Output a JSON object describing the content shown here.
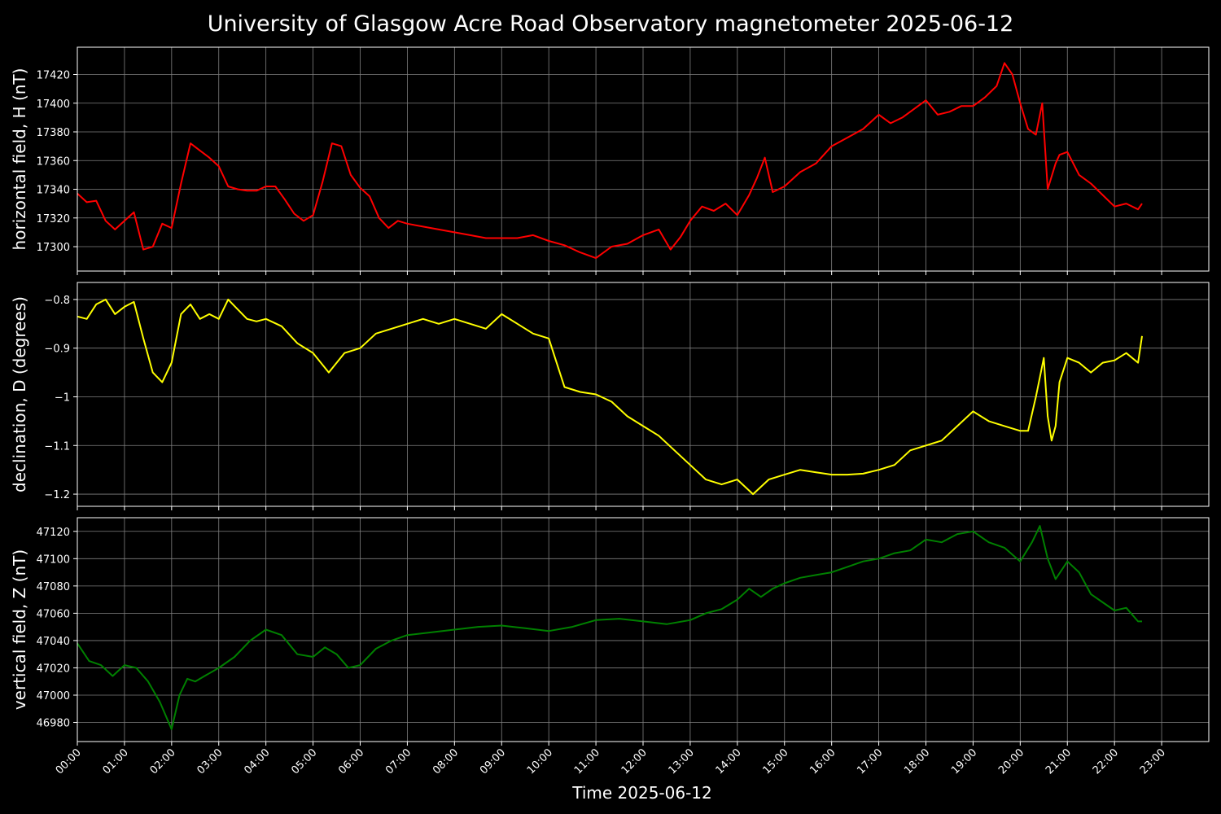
{
  "title": "University of Glasgow Acre Road Observatory magnetometer 2025-06-12",
  "xlabel": "Time 2025-06-12",
  "colors": {
    "background": "#000000",
    "grid": "#808080",
    "axes": "#ffffff",
    "text": "#ffffff"
  },
  "x_ticks": [
    "00:00",
    "01:00",
    "02:00",
    "03:00",
    "04:00",
    "05:00",
    "06:00",
    "07:00",
    "08:00",
    "09:00",
    "10:00",
    "11:00",
    "12:00",
    "13:00",
    "14:00",
    "15:00",
    "16:00",
    "17:00",
    "18:00",
    "19:00",
    "20:00",
    "21:00",
    "22:00",
    "23:00"
  ],
  "chart_data": [
    {
      "type": "line",
      "name": "H",
      "ylabel": "horizontal field, H (nT)",
      "color": "#ff0000",
      "grid": true,
      "xlim": [
        "00:00",
        "24:00"
      ],
      "ylim": [
        17283,
        17439
      ],
      "yticks": [
        17300,
        17320,
        17340,
        17360,
        17380,
        17400,
        17420
      ],
      "x": [
        "00:00",
        "00:12",
        "00:24",
        "00:36",
        "00:48",
        "01:00",
        "01:12",
        "01:24",
        "01:36",
        "01:48",
        "02:00",
        "02:12",
        "02:24",
        "02:36",
        "02:48",
        "03:00",
        "03:12",
        "03:24",
        "03:36",
        "03:48",
        "04:00",
        "04:12",
        "04:24",
        "04:36",
        "04:48",
        "05:00",
        "05:12",
        "05:24",
        "05:36",
        "05:48",
        "06:00",
        "06:12",
        "06:24",
        "06:36",
        "06:48",
        "07:00",
        "07:20",
        "07:40",
        "08:00",
        "08:20",
        "08:40",
        "09:00",
        "09:20",
        "09:40",
        "10:00",
        "10:20",
        "10:40",
        "11:00",
        "11:20",
        "11:40",
        "12:00",
        "12:20",
        "12:35",
        "12:48",
        "13:00",
        "13:15",
        "13:30",
        "13:45",
        "14:00",
        "14:15",
        "14:25",
        "14:35",
        "14:45",
        "15:00",
        "15:20",
        "15:40",
        "16:00",
        "16:20",
        "16:40",
        "17:00",
        "17:15",
        "17:30",
        "17:45",
        "18:00",
        "18:15",
        "18:30",
        "18:45",
        "19:00",
        "19:15",
        "19:30",
        "19:40",
        "19:50",
        "20:00",
        "20:10",
        "20:20",
        "20:28",
        "20:35",
        "20:45",
        "20:50",
        "21:00",
        "21:15",
        "21:30",
        "21:45",
        "22:00",
        "22:15",
        "22:30",
        "22:35"
      ],
      "values": [
        17337,
        17331,
        17332,
        17318,
        17312,
        17318,
        17324,
        17298,
        17300,
        17316,
        17313,
        17344,
        17372,
        17367,
        17362,
        17356,
        17342,
        17340,
        17339,
        17339,
        17342,
        17342,
        17333,
        17323,
        17318,
        17322,
        17345,
        17372,
        17370,
        17350,
        17341,
        17335,
        17320,
        17313,
        17318,
        17316,
        17314,
        17312,
        17310,
        17308,
        17306,
        17306,
        17306,
        17308,
        17304,
        17301,
        17296,
        17292,
        17300,
        17302,
        17308,
        17312,
        17298,
        17307,
        17318,
        17328,
        17325,
        17330,
        17322,
        17336,
        17348,
        17362,
        17338,
        17342,
        17352,
        17358,
        17370,
        17376,
        17382,
        17392,
        17386,
        17390,
        17396,
        17402,
        17392,
        17394,
        17398,
        17398,
        17404,
        17412,
        17428,
        17420,
        17400,
        17382,
        17378,
        17400,
        17340,
        17358,
        17364,
        17366,
        17350,
        17344,
        17336,
        17328,
        17330,
        17326,
        17330
      ]
    },
    {
      "type": "line",
      "name": "D",
      "ylabel": "declination, D (degrees)",
      "color": "#ffff00",
      "grid": true,
      "xlim": [
        "00:00",
        "24:00"
      ],
      "ylim": [
        -1.225,
        -0.765
      ],
      "yticks": [
        -1.2,
        -1.1,
        -1.0,
        -0.9,
        -0.8
      ],
      "x": [
        "00:00",
        "00:12",
        "00:24",
        "00:36",
        "00:48",
        "01:00",
        "01:12",
        "01:24",
        "01:36",
        "01:48",
        "02:00",
        "02:12",
        "02:24",
        "02:36",
        "02:48",
        "03:00",
        "03:12",
        "03:24",
        "03:36",
        "03:48",
        "04:00",
        "04:20",
        "04:40",
        "05:00",
        "05:20",
        "05:40",
        "06:00",
        "06:20",
        "06:40",
        "07:00",
        "07:20",
        "07:40",
        "08:00",
        "08:20",
        "08:40",
        "09:00",
        "09:20",
        "09:40",
        "10:00",
        "10:10",
        "10:20",
        "10:40",
        "11:00",
        "11:20",
        "11:40",
        "12:00",
        "12:20",
        "12:40",
        "13:00",
        "13:20",
        "13:40",
        "14:00",
        "14:20",
        "14:40",
        "15:00",
        "15:20",
        "15:40",
        "16:00",
        "16:20",
        "16:40",
        "17:00",
        "17:20",
        "17:40",
        "18:00",
        "18:20",
        "18:40",
        "19:00",
        "19:20",
        "19:40",
        "20:00",
        "20:10",
        "20:20",
        "20:25",
        "20:30",
        "20:35",
        "20:40",
        "20:45",
        "20:50",
        "21:00",
        "21:15",
        "21:30",
        "21:45",
        "22:00",
        "22:15",
        "22:30",
        "22:35"
      ],
      "values": [
        -0.835,
        -0.84,
        -0.81,
        -0.8,
        -0.83,
        -0.815,
        -0.805,
        -0.88,
        -0.95,
        -0.97,
        -0.93,
        -0.83,
        -0.81,
        -0.84,
        -0.83,
        -0.84,
        -0.8,
        -0.82,
        -0.84,
        -0.845,
        -0.84,
        -0.855,
        -0.89,
        -0.91,
        -0.95,
        -0.91,
        -0.9,
        -0.87,
        -0.86,
        -0.85,
        -0.84,
        -0.85,
        -0.84,
        -0.85,
        -0.86,
        -0.83,
        -0.85,
        -0.87,
        -0.88,
        -0.93,
        -0.98,
        -0.99,
        -0.995,
        -1.01,
        -1.04,
        -1.06,
        -1.08,
        -1.11,
        -1.14,
        -1.17,
        -1.18,
        -1.17,
        -1.2,
        -1.17,
        -1.16,
        -1.15,
        -1.155,
        -1.16,
        -1.16,
        -1.158,
        -1.15,
        -1.14,
        -1.11,
        -1.1,
        -1.09,
        -1.06,
        -1.03,
        -1.05,
        -1.06,
        -1.07,
        -1.07,
        -1.0,
        -0.96,
        -0.92,
        -1.04,
        -1.09,
        -1.06,
        -0.97,
        -0.92,
        -0.93,
        -0.95,
        -0.93,
        -0.925,
        -0.91,
        -0.93,
        -0.875
      ]
    },
    {
      "type": "line",
      "name": "Z",
      "ylabel": "vertical field, Z (nT)",
      "color": "#008000",
      "grid": true,
      "xlim": [
        "00:00",
        "24:00"
      ],
      "ylim": [
        46966,
        47130
      ],
      "yticks": [
        46980,
        47000,
        47020,
        47040,
        47060,
        47080,
        47100,
        47120
      ],
      "x": [
        "00:00",
        "00:15",
        "00:30",
        "00:45",
        "01:00",
        "01:15",
        "01:30",
        "01:45",
        "02:00",
        "02:10",
        "02:20",
        "02:30",
        "02:45",
        "03:00",
        "03:20",
        "03:40",
        "04:00",
        "04:20",
        "04:40",
        "05:00",
        "05:15",
        "05:30",
        "05:45",
        "06:00",
        "06:20",
        "06:40",
        "07:00",
        "07:30",
        "08:00",
        "08:30",
        "09:00",
        "09:30",
        "10:00",
        "10:30",
        "11:00",
        "11:30",
        "12:00",
        "12:30",
        "13:00",
        "13:20",
        "13:40",
        "14:00",
        "14:15",
        "14:30",
        "14:45",
        "15:00",
        "15:20",
        "15:40",
        "16:00",
        "16:20",
        "16:40",
        "17:00",
        "17:20",
        "17:40",
        "18:00",
        "18:20",
        "18:40",
        "19:00",
        "19:20",
        "19:40",
        "20:00",
        "20:15",
        "20:25",
        "20:35",
        "20:45",
        "21:00",
        "21:15",
        "21:30",
        "21:45",
        "22:00",
        "22:15",
        "22:30",
        "22:35"
      ],
      "values": [
        47038,
        47025,
        47022,
        47014,
        47022,
        47020,
        47010,
        46995,
        46975,
        47000,
        47012,
        47010,
        47015,
        47020,
        47028,
        47040,
        47048,
        47044,
        47030,
        47028,
        47035,
        47030,
        47020,
        47022,
        47034,
        47040,
        47044,
        47046,
        47048,
        47050,
        47051,
        47049,
        47047,
        47050,
        47055,
        47056,
        47054,
        47052,
        47055,
        47060,
        47063,
        47070,
        47078,
        47072,
        47078,
        47082,
        47086,
        47088,
        47090,
        47094,
        47098,
        47100,
        47104,
        47106,
        47114,
        47112,
        47118,
        47120,
        47112,
        47108,
        47098,
        47112,
        47124,
        47100,
        47085,
        47098,
        47090,
        47074,
        47068,
        47062,
        47064,
        47054,
        47054
      ]
    }
  ]
}
